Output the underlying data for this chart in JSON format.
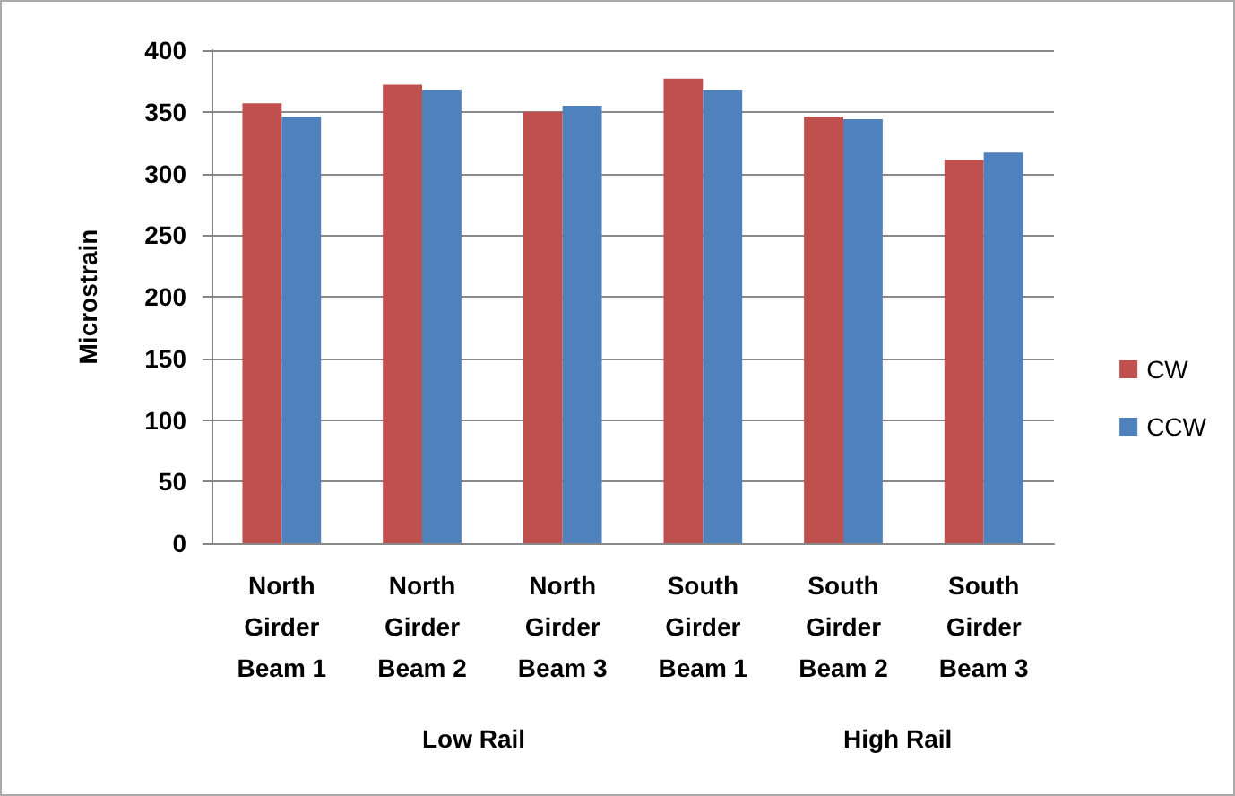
{
  "chart_data": {
    "type": "bar",
    "ylabel": "Microstrain",
    "categories": [
      "North\nGirder\nBeam 1",
      "North\nGirder\nBeam 2",
      "North\nGirder\nBeam 3",
      "South\nGirder\nBeam 1",
      "South\nGirder\nBeam 2",
      "South\nGirder\nBeam 3"
    ],
    "series": [
      {
        "name": "CW",
        "color": "#c0504d",
        "values": [
          357,
          372,
          350,
          377,
          346,
          311
        ]
      },
      {
        "name": "CCW",
        "color": "#4f81bd",
        "values": [
          346,
          368,
          355,
          368,
          344,
          317
        ]
      }
    ],
    "annotations": [
      "Low Rail",
      "High Rail"
    ],
    "ylim": [
      0,
      400
    ],
    "yticks": [
      0,
      50,
      100,
      150,
      200,
      250,
      300,
      350,
      400
    ],
    "grid": "y",
    "legend": "right"
  }
}
